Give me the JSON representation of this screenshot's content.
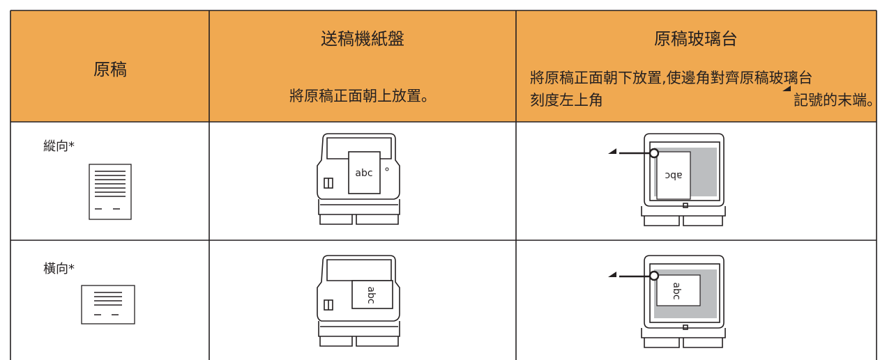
{
  "table": {
    "header": {
      "original": "原稿",
      "feeder": {
        "title": "送稿機紙盤",
        "note": "將原稿正面朝上放置。"
      },
      "glass": {
        "title": "原稿玻璃台",
        "note_line1": "將原稿正面朝下放置,使邊角對齊原稿玻璃台",
        "note_line2_before_mark": "刻度左上角",
        "note_line2_after_mark": "記號的末端。"
      }
    },
    "rows": [
      {
        "orientation": "縱向*",
        "feeder_image_text": "abc",
        "glass_image_text": "abc"
      },
      {
        "orientation": "橫向*",
        "feeder_image_text": "abc",
        "glass_image_text": "abc"
      }
    ]
  }
}
